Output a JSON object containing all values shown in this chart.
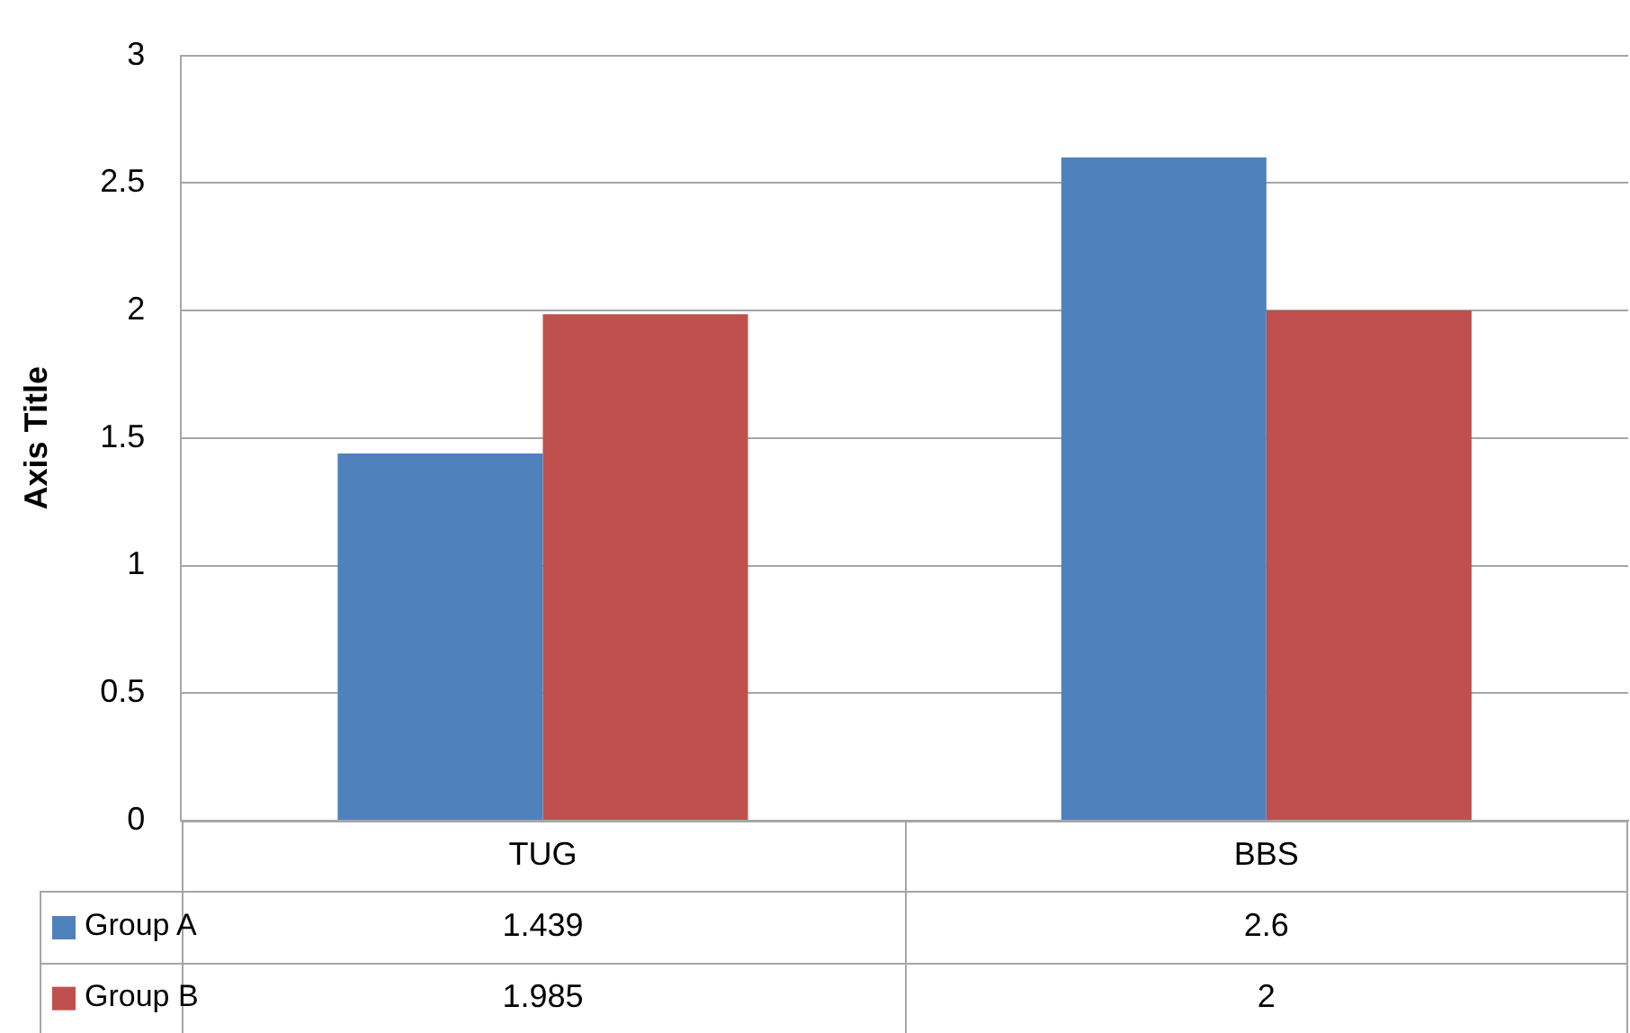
{
  "chart_data": {
    "type": "bar",
    "ylabel": "Axis Title",
    "categories": [
      "TUG",
      "BBS"
    ],
    "series": [
      {
        "name": "Group A",
        "color": "#4f81bd",
        "values": [
          1.439,
          2.6
        ]
      },
      {
        "name": "Group B",
        "color": "#c0504d",
        "values": [
          1.985,
          2
        ]
      }
    ],
    "ylim": [
      0,
      3
    ],
    "yticks": [
      0,
      0.5,
      1,
      1.5,
      2,
      2.5,
      3
    ],
    "grid": "y",
    "data_labels": true,
    "legend": "bottom left"
  }
}
